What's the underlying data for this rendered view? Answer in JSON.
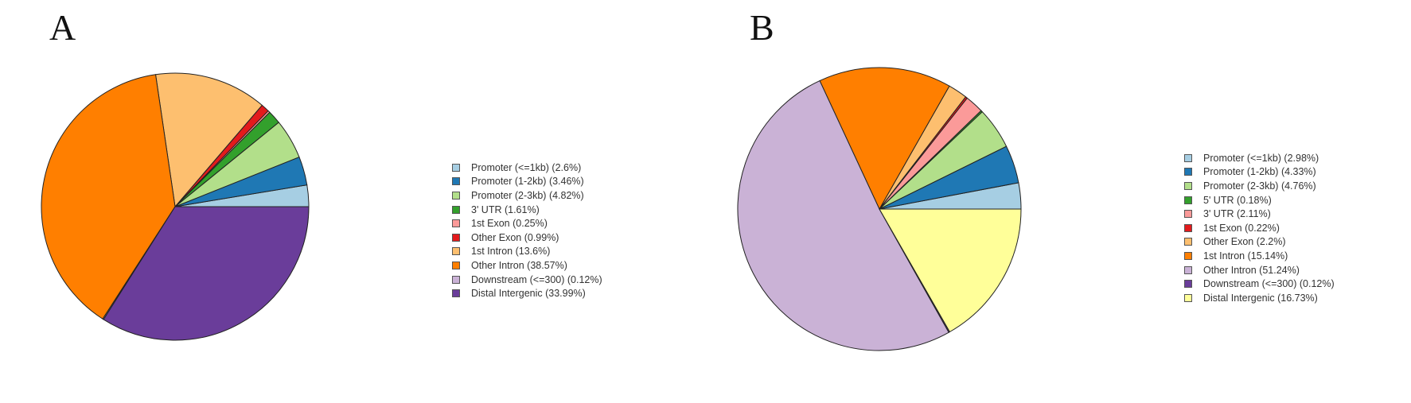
{
  "chart_data": [
    {
      "type": "pie",
      "panel_label": "A",
      "slices": [
        {
          "label": "Promoter (<=1kb) (2.6%)",
          "value": 2.6,
          "color": "#a6cee3"
        },
        {
          "label": "Promoter (1-2kb) (3.46%)",
          "value": 3.46,
          "color": "#1f78b4"
        },
        {
          "label": "Promoter (2-3kb) (4.82%)",
          "value": 4.82,
          "color": "#b2df8a"
        },
        {
          "label": "3' UTR (1.61%)",
          "value": 1.61,
          "color": "#33a02c"
        },
        {
          "label": "1st Exon (0.25%)",
          "value": 0.25,
          "color": "#fb9a99"
        },
        {
          "label": "Other Exon (0.99%)",
          "value": 0.99,
          "color": "#e31a1c"
        },
        {
          "label": "1st Intron (13.6%)",
          "value": 13.6,
          "color": "#fdbf6f"
        },
        {
          "label": "Other Intron (38.57%)",
          "value": 38.57,
          "color": "#ff7f00"
        },
        {
          "label": "Downstream (<=300) (0.12%)",
          "value": 0.12,
          "color": "#cab2d6"
        },
        {
          "label": "Distal Intergenic (33.99%)",
          "value": 33.99,
          "color": "#6a3d9a"
        }
      ]
    },
    {
      "type": "pie",
      "panel_label": "B",
      "slices": [
        {
          "label": "Promoter (<=1kb) (2.98%)",
          "value": 2.98,
          "color": "#a6cee3"
        },
        {
          "label": "Promoter (1-2kb) (4.33%)",
          "value": 4.33,
          "color": "#1f78b4"
        },
        {
          "label": "Promoter (2-3kb) (4.76%)",
          "value": 4.76,
          "color": "#b2df8a"
        },
        {
          "label": "5' UTR (0.18%)",
          "value": 0.18,
          "color": "#33a02c"
        },
        {
          "label": "3' UTR (2.11%)",
          "value": 2.11,
          "color": "#fb9a99"
        },
        {
          "label": "1st Exon (0.22%)",
          "value": 0.22,
          "color": "#e31a1c"
        },
        {
          "label": "Other Exon (2.2%)",
          "value": 2.2,
          "color": "#fdbf6f"
        },
        {
          "label": "1st Intron (15.14%)",
          "value": 15.14,
          "color": "#ff7f00"
        },
        {
          "label": "Other Intron (51.24%)",
          "value": 51.24,
          "color": "#cab2d6"
        },
        {
          "label": "Downstream (<=300) (0.12%)",
          "value": 0.12,
          "color": "#6a3d9a"
        },
        {
          "label": "Distal Intergenic (16.73%)",
          "value": 16.73,
          "color": "#ffff99"
        }
      ]
    }
  ]
}
